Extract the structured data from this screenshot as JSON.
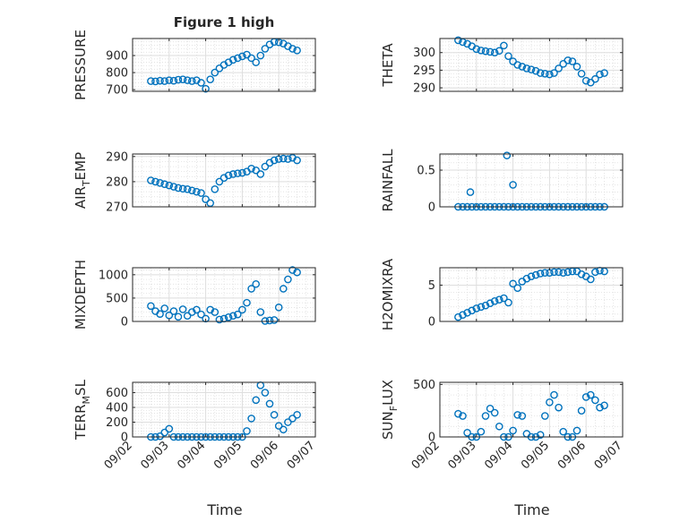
{
  "figure": {
    "title": "Figure 1 high",
    "xlabel": "Time",
    "marker_color": "#0072BD"
  },
  "chart_data": [
    {
      "type": "scatter",
      "ylabel": "PRESSURE",
      "xlim": [
        "09/02",
        "09/07"
      ],
      "ylim": [
        690,
        1000
      ],
      "yticks": [
        700,
        800,
        900
      ],
      "yticklabels": [
        "700",
        "800",
        "900"
      ],
      "grid": true,
      "x": [
        "09/02 12:00",
        "09/02 15:00",
        "09/02 18:00",
        "09/02 21:00",
        "09/03 00:00",
        "09/03 03:00",
        "09/03 06:00",
        "09/03 09:00",
        "09/03 12:00",
        "09/03 15:00",
        "09/03 18:00",
        "09/03 21:00",
        "09/04 00:00",
        "09/04 03:00",
        "09/04 06:00",
        "09/04 09:00",
        "09/04 12:00",
        "09/04 15:00",
        "09/04 18:00",
        "09/04 21:00",
        "09/05 00:00",
        "09/05 03:00",
        "09/05 06:00",
        "09/05 09:00",
        "09/05 12:00",
        "09/05 15:00",
        "09/05 18:00",
        "09/05 21:00",
        "09/06 00:00",
        "09/06 03:00",
        "09/06 06:00",
        "09/06 09:00",
        "09/06 12:00"
      ],
      "y": [
        750,
        748,
        752,
        750,
        755,
        752,
        758,
        760,
        755,
        750,
        755,
        740,
        705,
        760,
        800,
        825,
        845,
        860,
        875,
        885,
        895,
        905,
        885,
        860,
        900,
        940,
        965,
        980,
        978,
        970,
        955,
        940,
        930
      ]
    },
    {
      "type": "scatter",
      "ylabel": "THETA",
      "xlim": [
        "09/02",
        "09/07"
      ],
      "ylim": [
        289,
        304
      ],
      "yticks": [
        290,
        295,
        300
      ],
      "yticklabels": [
        "290",
        "295",
        "300"
      ],
      "grid": true,
      "x": [
        "09/02 12:00",
        "09/02 15:00",
        "09/02 18:00",
        "09/02 21:00",
        "09/03 00:00",
        "09/03 03:00",
        "09/03 06:00",
        "09/03 09:00",
        "09/03 12:00",
        "09/03 15:00",
        "09/03 18:00",
        "09/03 21:00",
        "09/04 00:00",
        "09/04 03:00",
        "09/04 06:00",
        "09/04 09:00",
        "09/04 12:00",
        "09/04 15:00",
        "09/04 18:00",
        "09/04 21:00",
        "09/05 00:00",
        "09/05 03:00",
        "09/05 06:00",
        "09/05 09:00",
        "09/05 12:00",
        "09/05 15:00",
        "09/05 18:00",
        "09/05 21:00",
        "09/06 00:00",
        "09/06 03:00",
        "09/06 06:00",
        "09/06 09:00",
        "09/06 12:00"
      ],
      "y": [
        303.5,
        303,
        302.5,
        301.8,
        301,
        300.6,
        300.4,
        300.2,
        300,
        300.5,
        302,
        299,
        297.5,
        296.5,
        296,
        295.5,
        295.2,
        294.8,
        294.2,
        294,
        293.8,
        294.2,
        295.5,
        296.8,
        297.8,
        297.5,
        296,
        294,
        292,
        291.5,
        292.5,
        293.8,
        294.2
      ]
    },
    {
      "type": "scatter",
      "ylabel": "AIR_TEMP",
      "xlim": [
        "09/02",
        "09/07"
      ],
      "ylim": [
        270,
        291
      ],
      "yticks": [
        270,
        280,
        290
      ],
      "yticklabels": [
        "270",
        "280",
        "290"
      ],
      "grid": true,
      "x": [
        "09/02 12:00",
        "09/02 15:00",
        "09/02 18:00",
        "09/02 21:00",
        "09/03 00:00",
        "09/03 03:00",
        "09/03 06:00",
        "09/03 09:00",
        "09/03 12:00",
        "09/03 15:00",
        "09/03 18:00",
        "09/03 21:00",
        "09/04 00:00",
        "09/04 03:00",
        "09/04 06:00",
        "09/04 09:00",
        "09/04 12:00",
        "09/04 15:00",
        "09/04 18:00",
        "09/04 21:00",
        "09/05 00:00",
        "09/05 03:00",
        "09/05 06:00",
        "09/05 09:00",
        "09/05 12:00",
        "09/05 15:00",
        "09/05 18:00",
        "09/05 21:00",
        "09/06 00:00",
        "09/06 03:00",
        "09/06 06:00",
        "09/06 09:00",
        "09/06 12:00"
      ],
      "y": [
        280.5,
        280,
        279.5,
        279,
        278.5,
        278,
        277.5,
        277.2,
        277,
        276.5,
        276,
        275.5,
        273,
        271.5,
        277,
        280,
        281.5,
        282.5,
        283,
        283.3,
        283.5,
        284,
        285.2,
        284.5,
        283,
        286,
        287.5,
        288.5,
        289,
        289.2,
        289,
        289.5,
        288.5
      ]
    },
    {
      "type": "scatter",
      "ylabel": "RAINFALL",
      "xlim": [
        "09/02",
        "09/07"
      ],
      "ylim": [
        0,
        0.72
      ],
      "yticks": [
        0,
        0.5
      ],
      "yticklabels": [
        "0",
        "0.5"
      ],
      "grid": true,
      "x": [
        "09/02 12:00",
        "09/02 15:00",
        "09/02 18:00",
        "09/02 21:00",
        "09/03 00:00",
        "09/03 03:00",
        "09/03 06:00",
        "09/03 09:00",
        "09/03 12:00",
        "09/03 15:00",
        "09/03 18:00",
        "09/03 21:00",
        "09/04 00:00",
        "09/04 03:00",
        "09/04 06:00",
        "09/04 09:00",
        "09/04 12:00",
        "09/04 15:00",
        "09/04 18:00",
        "09/04 21:00",
        "09/05 00:00",
        "09/05 03:00",
        "09/05 06:00",
        "09/05 09:00",
        "09/05 12:00",
        "09/05 15:00",
        "09/05 18:00",
        "09/05 21:00",
        "09/06 00:00",
        "09/06 03:00",
        "09/06 06:00",
        "09/06 09:00",
        "09/06 12:00",
        "09/02 20:00",
        "09/03 20:00",
        "09/04 00:00"
      ],
      "y": [
        0,
        0,
        0,
        0,
        0,
        0,
        0,
        0,
        0,
        0,
        0,
        0,
        0,
        0,
        0,
        0,
        0,
        0,
        0,
        0,
        0,
        0,
        0,
        0,
        0,
        0,
        0,
        0,
        0,
        0,
        0,
        0,
        0,
        0.2,
        0.7,
        0.3
      ]
    },
    {
      "type": "scatter",
      "ylabel": "MIXDEPTH",
      "xlim": [
        "09/02",
        "09/07"
      ],
      "ylim": [
        0,
        1150
      ],
      "yticks": [
        0,
        500,
        1000
      ],
      "yticklabels": [
        "0",
        "500",
        "1000"
      ],
      "grid": true,
      "x": [
        "09/02 12:00",
        "09/02 15:00",
        "09/02 18:00",
        "09/02 21:00",
        "09/03 00:00",
        "09/03 03:00",
        "09/03 06:00",
        "09/03 09:00",
        "09/03 12:00",
        "09/03 15:00",
        "09/03 18:00",
        "09/03 21:00",
        "09/04 00:00",
        "09/04 03:00",
        "09/04 06:00",
        "09/04 09:00",
        "09/04 12:00",
        "09/04 15:00",
        "09/04 18:00",
        "09/04 21:00",
        "09/05 00:00",
        "09/05 03:00",
        "09/05 06:00",
        "09/05 09:00",
        "09/05 12:00",
        "09/05 15:00",
        "09/05 18:00",
        "09/05 21:00",
        "09/06 00:00",
        "09/06 03:00",
        "09/06 06:00",
        "09/06 09:00",
        "09/06 12:00"
      ],
      "y": [
        330,
        220,
        160,
        280,
        130,
        220,
        100,
        260,
        120,
        200,
        250,
        150,
        60,
        250,
        200,
        40,
        60,
        90,
        120,
        150,
        250,
        400,
        700,
        800,
        200,
        10,
        20,
        30,
        300,
        700,
        900,
        1100,
        1050
      ]
    },
    {
      "type": "scatter",
      "ylabel": "H2OMIXRA",
      "xlim": [
        "09/02",
        "09/07"
      ],
      "ylim": [
        0,
        7.4
      ],
      "yticks": [
        0,
        5
      ],
      "yticklabels": [
        "0",
        "5"
      ],
      "grid": true,
      "x": [
        "09/02 12:00",
        "09/02 15:00",
        "09/02 18:00",
        "09/02 21:00",
        "09/03 00:00",
        "09/03 03:00",
        "09/03 06:00",
        "09/03 09:00",
        "09/03 12:00",
        "09/03 15:00",
        "09/03 18:00",
        "09/03 21:00",
        "09/04 00:00",
        "09/04 03:00",
        "09/04 06:00",
        "09/04 09:00",
        "09/04 12:00",
        "09/04 15:00",
        "09/04 18:00",
        "09/04 21:00",
        "09/05 00:00",
        "09/05 03:00",
        "09/05 06:00",
        "09/05 09:00",
        "09/05 12:00",
        "09/05 15:00",
        "09/05 18:00",
        "09/05 21:00",
        "09/06 00:00",
        "09/06 03:00",
        "09/06 06:00",
        "09/06 09:00",
        "09/06 12:00"
      ],
      "y": [
        0.6,
        0.9,
        1.2,
        1.5,
        1.8,
        2.0,
        2.2,
        2.5,
        2.8,
        3.0,
        3.2,
        2.6,
        5.2,
        4.6,
        5.5,
        5.9,
        6.2,
        6.4,
        6.6,
        6.7,
        6.7,
        6.8,
        6.8,
        6.7,
        6.8,
        6.9,
        6.9,
        6.5,
        6.2,
        5.8,
        6.8,
        7.0,
        6.9
      ]
    },
    {
      "type": "scatter",
      "ylabel": "TERR_MSL",
      "xlim": [
        "09/02",
        "09/07"
      ],
      "ylim": [
        0,
        740
      ],
      "yticks": [
        0,
        200,
        400,
        600
      ],
      "yticklabels": [
        "0",
        "200",
        "400",
        "600"
      ],
      "grid": true,
      "x": [
        "09/02 12:00",
        "09/02 15:00",
        "09/02 18:00",
        "09/02 21:00",
        "09/03 00:00",
        "09/03 03:00",
        "09/03 06:00",
        "09/03 09:00",
        "09/03 12:00",
        "09/03 15:00",
        "09/03 18:00",
        "09/03 21:00",
        "09/04 00:00",
        "09/04 03:00",
        "09/04 06:00",
        "09/04 09:00",
        "09/04 12:00",
        "09/04 15:00",
        "09/04 18:00",
        "09/04 21:00",
        "09/05 00:00",
        "09/05 03:00",
        "09/05 06:00",
        "09/05 09:00",
        "09/05 12:00",
        "09/05 15:00",
        "09/05 18:00",
        "09/05 21:00",
        "09/06 00:00",
        "09/06 03:00",
        "09/06 06:00",
        "09/06 09:00",
        "09/06 12:00"
      ],
      "y": [
        0,
        0,
        10,
        60,
        110,
        0,
        0,
        0,
        0,
        0,
        0,
        0,
        0,
        0,
        0,
        0,
        0,
        0,
        0,
        0,
        0,
        80,
        250,
        500,
        700,
        600,
        450,
        300,
        150,
        100,
        200,
        250,
        300
      ]
    },
    {
      "type": "scatter",
      "ylabel": "SUN_FLUX",
      "xlim": [
        "09/02",
        "09/07"
      ],
      "ylim": [
        0,
        520
      ],
      "yticks": [
        0,
        500
      ],
      "yticklabels": [
        "0",
        "500"
      ],
      "grid": true,
      "x": [
        "09/02 12:00",
        "09/02 15:00",
        "09/02 18:00",
        "09/02 21:00",
        "09/03 00:00",
        "09/03 03:00",
        "09/03 06:00",
        "09/03 09:00",
        "09/03 12:00",
        "09/03 15:00",
        "09/03 18:00",
        "09/03 21:00",
        "09/04 00:00",
        "09/04 03:00",
        "09/04 06:00",
        "09/04 09:00",
        "09/04 12:00",
        "09/04 15:00",
        "09/04 18:00",
        "09/04 21:00",
        "09/05 00:00",
        "09/05 03:00",
        "09/05 06:00",
        "09/05 09:00",
        "09/05 12:00",
        "09/05 15:00",
        "09/05 18:00",
        "09/05 21:00",
        "09/06 00:00",
        "09/06 03:00",
        "09/06 06:00",
        "09/06 09:00",
        "09/06 12:00"
      ],
      "y": [
        220,
        200,
        40,
        0,
        0,
        50,
        200,
        270,
        230,
        100,
        0,
        0,
        60,
        210,
        200,
        30,
        0,
        0,
        20,
        200,
        330,
        400,
        280,
        50,
        0,
        0,
        60,
        250,
        380,
        400,
        350,
        280,
        300
      ]
    }
  ],
  "xticklabels": [
    "09/02",
    "09/03",
    "09/04",
    "09/05",
    "09/06",
    "09/07"
  ]
}
